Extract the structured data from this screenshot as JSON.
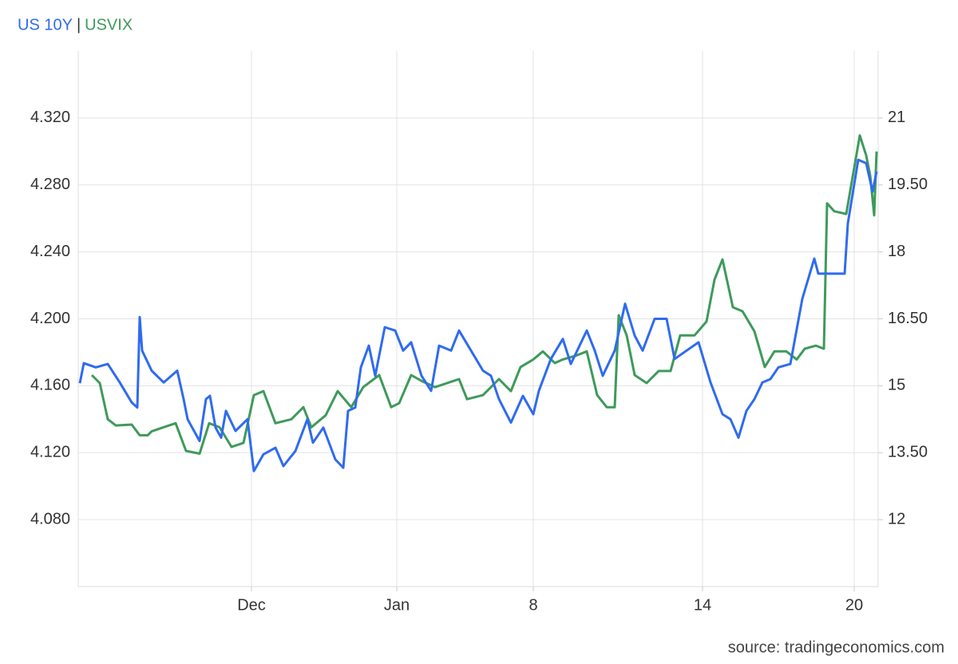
{
  "chart_data": {
    "type": "line",
    "title_separator": "|",
    "source": "source: tradingeconomics.com",
    "grid": true,
    "xlim": [
      0,
      100.2
    ],
    "xticks": [
      {
        "value": 21.7,
        "label": "Dec"
      },
      {
        "value": 39.9,
        "label": "Jan"
      },
      {
        "value": 57.0,
        "label": "8"
      },
      {
        "value": 78.2,
        "label": "14"
      },
      {
        "value": 97.2,
        "label": "20"
      }
    ],
    "ylim": [
      4.04,
      4.36
    ],
    "yticks": [
      {
        "value": 4.08,
        "label": "4.080"
      },
      {
        "value": 4.12,
        "label": "4.120"
      },
      {
        "value": 4.16,
        "label": "4.160"
      },
      {
        "value": 4.2,
        "label": "4.200"
      },
      {
        "value": 4.24,
        "label": "4.240"
      },
      {
        "value": 4.28,
        "label": "4.280"
      },
      {
        "value": 4.32,
        "label": "4.320"
      }
    ],
    "y2lim": [
      10.5,
      22.5
    ],
    "y2ticks": [
      12,
      {
        "value": 13.5,
        "label": "13.50"
      },
      15,
      {
        "value": 16.5,
        "label": "16.50"
      },
      18,
      {
        "value": 19.5,
        "label": "19.50"
      },
      21
    ],
    "series": [
      {
        "name": "US 10Y",
        "color": "#2f6bf0",
        "axis": "y",
        "x": [
          0.2,
          0.7,
          2.2,
          3.7,
          5.2,
          6.7,
          7.4,
          7.7,
          8.0,
          9.2,
          10.7,
          12.4,
          13.2,
          13.7,
          15.2,
          16.0,
          16.5,
          17.2,
          17.9,
          18.5,
          19.7,
          21.2,
          22.0,
          23.2,
          24.7,
          25.7,
          27.2,
          28.7,
          29.4,
          30.7,
          32.2,
          33.2,
          33.8,
          34.7,
          35.4,
          36.4,
          37.2,
          38.4,
          39.7,
          40.7,
          41.7,
          43.0,
          44.2,
          45.2,
          46.7,
          47.7,
          49.2,
          50.7,
          51.7,
          52.7,
          54.2,
          55.7,
          57.0,
          57.7,
          59.2,
          60.7,
          61.7,
          63.7,
          64.7,
          65.7,
          67.2,
          68.5,
          69.7,
          70.7,
          72.2,
          73.7,
          74.7,
          76.2,
          77.7,
          79.2,
          80.7,
          81.7,
          82.7,
          83.7,
          84.7,
          85.7,
          86.7,
          87.7,
          89.2,
          90.7,
          92.2,
          92.7,
          96.0,
          96.4,
          97.7,
          98.7,
          99.5,
          100.0
        ],
        "values": [
          4.1615,
          4.1735,
          4.171,
          4.173,
          4.162,
          4.15,
          4.147,
          4.201,
          4.181,
          4.169,
          4.162,
          4.169,
          4.152,
          4.14,
          4.127,
          4.152,
          4.154,
          4.135,
          4.129,
          4.145,
          4.133,
          4.14,
          4.109,
          4.119,
          4.123,
          4.112,
          4.121,
          4.14,
          4.126,
          4.135,
          4.116,
          4.111,
          4.145,
          4.147,
          4.171,
          4.184,
          4.166,
          4.195,
          4.193,
          4.181,
          4.186,
          4.166,
          4.157,
          4.184,
          4.181,
          4.193,
          4.181,
          4.169,
          4.166,
          4.152,
          4.138,
          4.154,
          4.143,
          4.157,
          4.176,
          4.188,
          4.173,
          4.193,
          4.181,
          4.166,
          4.181,
          4.209,
          4.19,
          4.181,
          4.2,
          4.2,
          4.176,
          4.181,
          4.186,
          4.162,
          4.143,
          4.14,
          4.129,
          4.145,
          4.152,
          4.162,
          4.164,
          4.171,
          4.173,
          4.212,
          4.236,
          4.227,
          4.227,
          4.257,
          4.295,
          4.293,
          4.276,
          4.288
        ]
      },
      {
        "name": "USVIX",
        "color": "#3e9a5a",
        "axis": "y2",
        "x": [
          1.7,
          2.7,
          3.7,
          4.7,
          6.7,
          7.7,
          8.7,
          9.2,
          12.2,
          13.5,
          15.2,
          16.4,
          17.7,
          19.2,
          20.7,
          22.0,
          23.2,
          24.7,
          26.7,
          28.2,
          29.2,
          31.0,
          32.5,
          34.2,
          35.7,
          37.7,
          39.2,
          40.2,
          41.7,
          43.2,
          44.7,
          47.7,
          48.7,
          50.7,
          52.7,
          54.2,
          55.4,
          57.0,
          58.2,
          59.7,
          60.7,
          62.4,
          63.7,
          65.0,
          66.2,
          67.2,
          67.7,
          68.7,
          69.7,
          71.2,
          72.7,
          74.2,
          75.4,
          77.2,
          78.7,
          79.7,
          80.7,
          82.0,
          83.2,
          84.7,
          86.0,
          87.2,
          88.7,
          90.0,
          91.0,
          92.4,
          93.4,
          93.8,
          94.7,
          96.2,
          97.9,
          98.7,
          99.2,
          99.7,
          100.0
        ],
        "values": [
          15.24,
          15.06,
          14.25,
          14.11,
          14.13,
          13.89,
          13.89,
          13.98,
          14.16,
          13.54,
          13.48,
          14.16,
          14.07,
          13.63,
          13.72,
          14.79,
          14.88,
          14.16,
          14.25,
          14.52,
          14.07,
          14.34,
          14.88,
          14.52,
          14.97,
          15.24,
          14.52,
          14.61,
          15.24,
          15.09,
          14.97,
          15.15,
          14.7,
          14.79,
          15.15,
          14.88,
          15.42,
          15.59,
          15.77,
          15.51,
          15.59,
          15.68,
          15.77,
          14.79,
          14.52,
          14.52,
          16.58,
          16.13,
          15.24,
          15.06,
          15.33,
          15.33,
          16.13,
          16.13,
          16.44,
          17.38,
          17.83,
          16.76,
          16.67,
          16.22,
          15.42,
          15.77,
          15.77,
          15.59,
          15.83,
          15.9,
          15.83,
          19.09,
          18.91,
          18.85,
          20.61,
          20.16,
          19.71,
          18.82,
          20.25
        ]
      }
    ]
  }
}
